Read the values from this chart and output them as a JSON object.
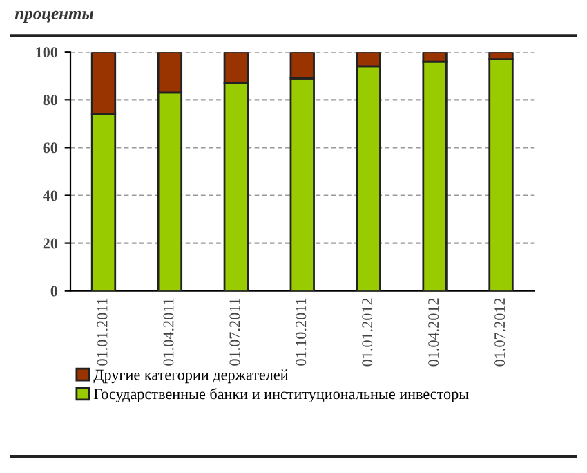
{
  "chart_data": {
    "type": "bar",
    "title": "проценты",
    "stacked": true,
    "categories": [
      "01.01.2011",
      "01.04.2011",
      "01.07.2011",
      "01.10.2011",
      "01.01.2012",
      "01.04.2012",
      "01.07.2012"
    ],
    "series": [
      {
        "name": "Государственные банки и институциональные инвесторы",
        "color": "#99cc00",
        "values": [
          74,
          83,
          87,
          89,
          94,
          96,
          97
        ]
      },
      {
        "name": "Другие категории держателей",
        "color": "#993300",
        "values": [
          26,
          17,
          13,
          11,
          6,
          4,
          3
        ]
      }
    ],
    "ylim": [
      0,
      100
    ],
    "yticks": [
      0,
      20,
      40,
      60,
      80,
      100
    ],
    "grid": "y",
    "legend": "bottom"
  }
}
